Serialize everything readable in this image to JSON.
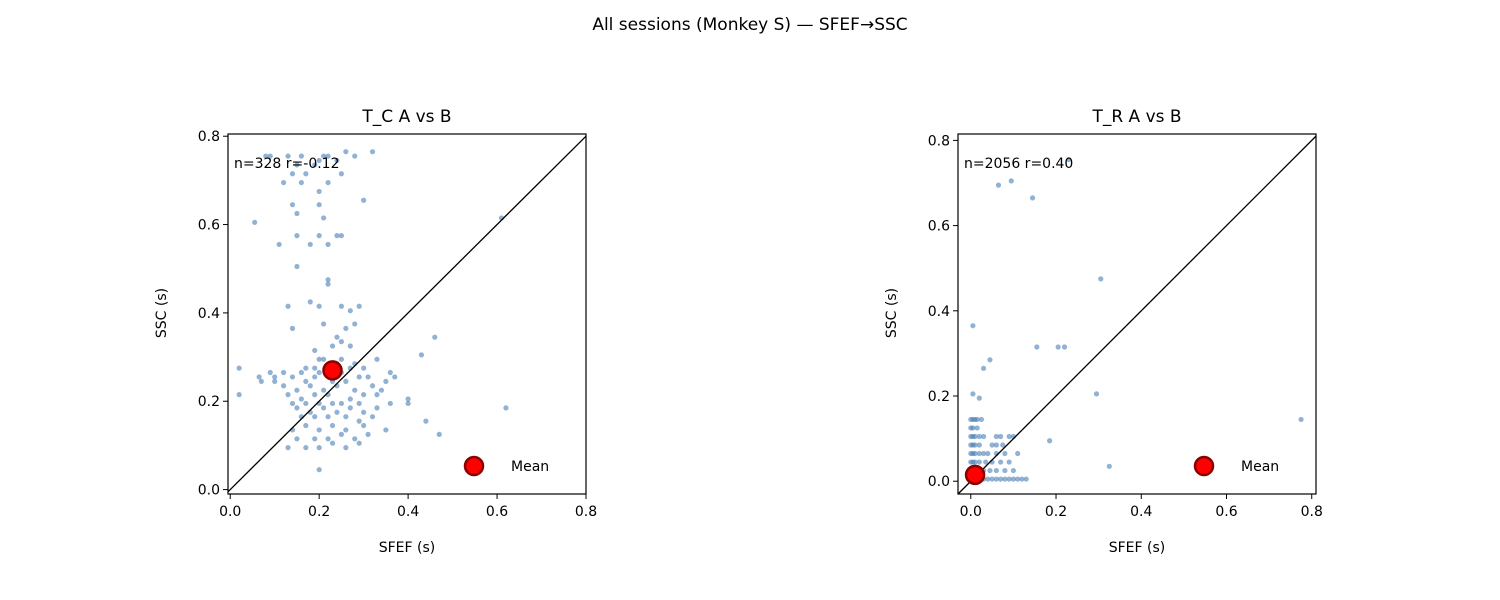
{
  "suptitle": "All sessions (Monkey S) — SFEF→SSC",
  "colors": {
    "points": "#4a7fb5",
    "mean_fill": "#ff0000",
    "mean_edge": "#8b0000",
    "diagonal": "#000000"
  },
  "chart_data": [
    {
      "type": "scatter",
      "title": "T_C  A vs B",
      "xlabel": "SFEF (s)",
      "ylabel": "SSC (s)",
      "xlim": [
        -0.005,
        0.8
      ],
      "ylim": [
        -0.01,
        0.805
      ],
      "xticks": [
        "0.0",
        "0.2",
        "0.4",
        "0.6",
        "0.8"
      ],
      "yticks": [
        "0.0",
        "0.2",
        "0.4",
        "0.6",
        "0.8"
      ],
      "stats_text": "n=328  r=-0.12",
      "legend": {
        "label": "Mean",
        "position": "lower-right"
      },
      "grid": false,
      "diagonal": true,
      "mean": {
        "x": 0.23,
        "y": 0.27
      },
      "points": [
        [
          0.08,
          0.755
        ],
        [
          0.09,
          0.755
        ],
        [
          0.13,
          0.755
        ],
        [
          0.16,
          0.755
        ],
        [
          0.21,
          0.755
        ],
        [
          0.22,
          0.755
        ],
        [
          0.26,
          0.765
        ],
        [
          0.28,
          0.755
        ],
        [
          0.32,
          0.765
        ],
        [
          0.15,
          0.735
        ],
        [
          0.19,
          0.735
        ],
        [
          0.2,
          0.745
        ],
        [
          0.24,
          0.745
        ],
        [
          0.14,
          0.715
        ],
        [
          0.17,
          0.715
        ],
        [
          0.12,
          0.695
        ],
        [
          0.16,
          0.695
        ],
        [
          0.2,
          0.675
        ],
        [
          0.22,
          0.695
        ],
        [
          0.25,
          0.715
        ],
        [
          0.14,
          0.645
        ],
        [
          0.15,
          0.625
        ],
        [
          0.2,
          0.645
        ],
        [
          0.3,
          0.655
        ],
        [
          0.21,
          0.615
        ],
        [
          0.055,
          0.605
        ],
        [
          0.11,
          0.555
        ],
        [
          0.15,
          0.575
        ],
        [
          0.18,
          0.555
        ],
        [
          0.2,
          0.575
        ],
        [
          0.22,
          0.555
        ],
        [
          0.24,
          0.575
        ],
        [
          0.25,
          0.575
        ],
        [
          0.15,
          0.505
        ],
        [
          0.22,
          0.475
        ],
        [
          0.22,
          0.465
        ],
        [
          0.13,
          0.415
        ],
        [
          0.18,
          0.425
        ],
        [
          0.2,
          0.415
        ],
        [
          0.25,
          0.415
        ],
        [
          0.27,
          0.405
        ],
        [
          0.29,
          0.415
        ],
        [
          0.14,
          0.365
        ],
        [
          0.21,
          0.375
        ],
        [
          0.26,
          0.365
        ],
        [
          0.28,
          0.375
        ],
        [
          0.24,
          0.345
        ],
        [
          0.25,
          0.335
        ],
        [
          0.27,
          0.325
        ],
        [
          0.46,
          0.345
        ],
        [
          0.19,
          0.315
        ],
        [
          0.23,
          0.325
        ],
        [
          0.43,
          0.305
        ],
        [
          0.2,
          0.295
        ],
        [
          0.21,
          0.295
        ],
        [
          0.25,
          0.295
        ],
        [
          0.28,
          0.285
        ],
        [
          0.33,
          0.295
        ],
        [
          0.17,
          0.275
        ],
        [
          0.19,
          0.275
        ],
        [
          0.22,
          0.275
        ],
        [
          0.24,
          0.285
        ],
        [
          0.27,
          0.275
        ],
        [
          0.3,
          0.275
        ],
        [
          0.02,
          0.275
        ],
        [
          0.09,
          0.265
        ],
        [
          0.1,
          0.255
        ],
        [
          0.12,
          0.265
        ],
        [
          0.16,
          0.265
        ],
        [
          0.2,
          0.265
        ],
        [
          0.25,
          0.265
        ],
        [
          0.29,
          0.255
        ],
        [
          0.36,
          0.265
        ],
        [
          0.37,
          0.255
        ],
        [
          0.065,
          0.255
        ],
        [
          0.07,
          0.245
        ],
        [
          0.1,
          0.245
        ],
        [
          0.14,
          0.255
        ],
        [
          0.17,
          0.245
        ],
        [
          0.19,
          0.255
        ],
        [
          0.23,
          0.245
        ],
        [
          0.26,
          0.245
        ],
        [
          0.31,
          0.255
        ],
        [
          0.35,
          0.245
        ],
        [
          0.12,
          0.235
        ],
        [
          0.15,
          0.225
        ],
        [
          0.18,
          0.235
        ],
        [
          0.21,
          0.225
        ],
        [
          0.24,
          0.235
        ],
        [
          0.28,
          0.225
        ],
        [
          0.32,
          0.235
        ],
        [
          0.34,
          0.225
        ],
        [
          0.02,
          0.215
        ],
        [
          0.13,
          0.215
        ],
        [
          0.16,
          0.205
        ],
        [
          0.19,
          0.215
        ],
        [
          0.22,
          0.215
        ],
        [
          0.27,
          0.205
        ],
        [
          0.3,
          0.215
        ],
        [
          0.33,
          0.215
        ],
        [
          0.14,
          0.195
        ],
        [
          0.17,
          0.195
        ],
        [
          0.2,
          0.195
        ],
        [
          0.23,
          0.195
        ],
        [
          0.25,
          0.195
        ],
        [
          0.29,
          0.195
        ],
        [
          0.36,
          0.195
        ],
        [
          0.4,
          0.205
        ],
        [
          0.4,
          0.195
        ],
        [
          0.15,
          0.185
        ],
        [
          0.18,
          0.175
        ],
        [
          0.21,
          0.185
        ],
        [
          0.24,
          0.175
        ],
        [
          0.27,
          0.185
        ],
        [
          0.3,
          0.175
        ],
        [
          0.33,
          0.185
        ],
        [
          0.62,
          0.185
        ],
        [
          0.16,
          0.165
        ],
        [
          0.19,
          0.165
        ],
        [
          0.22,
          0.165
        ],
        [
          0.26,
          0.165
        ],
        [
          0.29,
          0.155
        ],
        [
          0.32,
          0.165
        ],
        [
          0.44,
          0.155
        ],
        [
          0.14,
          0.135
        ],
        [
          0.17,
          0.145
        ],
        [
          0.2,
          0.135
        ],
        [
          0.23,
          0.145
        ],
        [
          0.26,
          0.135
        ],
        [
          0.3,
          0.145
        ],
        [
          0.35,
          0.135
        ],
        [
          0.47,
          0.125
        ],
        [
          0.15,
          0.115
        ],
        [
          0.19,
          0.115
        ],
        [
          0.22,
          0.115
        ],
        [
          0.25,
          0.125
        ],
        [
          0.28,
          0.115
        ],
        [
          0.31,
          0.125
        ],
        [
          0.13,
          0.095
        ],
        [
          0.17,
          0.095
        ],
        [
          0.2,
          0.095
        ],
        [
          0.23,
          0.105
        ],
        [
          0.26,
          0.095
        ],
        [
          0.29,
          0.105
        ],
        [
          0.2,
          0.045
        ],
        [
          0.61,
          0.615
        ]
      ]
    },
    {
      "type": "scatter",
      "title": "T_R  A vs B",
      "xlabel": "SFEF (s)",
      "ylabel": "SSC (s)",
      "xlim": [
        -0.03,
        0.81
      ],
      "ylim": [
        -0.03,
        0.815
      ],
      "xticks": [
        "0.0",
        "0.2",
        "0.4",
        "0.6",
        "0.8"
      ],
      "yticks": [
        "0.0",
        "0.2",
        "0.4",
        "0.6",
        "0.8"
      ],
      "stats_text": "n=2056  r=0.40",
      "legend": {
        "label": "Mean",
        "position": "lower-right"
      },
      "grid": false,
      "diagonal": true,
      "mean": {
        "x": 0.01,
        "y": 0.015
      },
      "points": [
        [
          0.23,
          0.755
        ],
        [
          0.065,
          0.695
        ],
        [
          0.095,
          0.705
        ],
        [
          0.145,
          0.665
        ],
        [
          0.305,
          0.475
        ],
        [
          0.005,
          0.365
        ],
        [
          0.045,
          0.285
        ],
        [
          0.03,
          0.265
        ],
        [
          0.155,
          0.315
        ],
        [
          0.205,
          0.315
        ],
        [
          0.22,
          0.315
        ],
        [
          0.005,
          0.205
        ],
        [
          0.02,
          0.195
        ],
        [
          0.295,
          0.205
        ],
        [
          0.0,
          0.145
        ],
        [
          0.005,
          0.145
        ],
        [
          0.01,
          0.145
        ],
        [
          0.015,
          0.145
        ],
        [
          0.025,
          0.145
        ],
        [
          0.0,
          0.125
        ],
        [
          0.005,
          0.125
        ],
        [
          0.015,
          0.125
        ],
        [
          0.0,
          0.105
        ],
        [
          0.005,
          0.105
        ],
        [
          0.01,
          0.105
        ],
        [
          0.02,
          0.105
        ],
        [
          0.03,
          0.105
        ],
        [
          0.06,
          0.105
        ],
        [
          0.07,
          0.105
        ],
        [
          0.09,
          0.105
        ],
        [
          0.1,
          0.105
        ],
        [
          0.0,
          0.085
        ],
        [
          0.005,
          0.085
        ],
        [
          0.01,
          0.085
        ],
        [
          0.02,
          0.085
        ],
        [
          0.05,
          0.085
        ],
        [
          0.06,
          0.085
        ],
        [
          0.075,
          0.085
        ],
        [
          0.185,
          0.095
        ],
        [
          0.0,
          0.065
        ],
        [
          0.005,
          0.065
        ],
        [
          0.01,
          0.065
        ],
        [
          0.02,
          0.065
        ],
        [
          0.03,
          0.065
        ],
        [
          0.04,
          0.065
        ],
        [
          0.06,
          0.065
        ],
        [
          0.08,
          0.065
        ],
        [
          0.11,
          0.065
        ],
        [
          0.0,
          0.045
        ],
        [
          0.005,
          0.045
        ],
        [
          0.01,
          0.045
        ],
        [
          0.02,
          0.045
        ],
        [
          0.035,
          0.045
        ],
        [
          0.05,
          0.045
        ],
        [
          0.07,
          0.045
        ],
        [
          0.09,
          0.045
        ],
        [
          0.0,
          0.025
        ],
        [
          0.01,
          0.025
        ],
        [
          0.02,
          0.025
        ],
        [
          0.03,
          0.025
        ],
        [
          0.045,
          0.025
        ],
        [
          0.06,
          0.025
        ],
        [
          0.08,
          0.025
        ],
        [
          0.1,
          0.025
        ],
        [
          0.0,
          0.005
        ],
        [
          0.01,
          0.005
        ],
        [
          0.02,
          0.005
        ],
        [
          0.03,
          0.005
        ],
        [
          0.04,
          0.005
        ],
        [
          0.05,
          0.005
        ],
        [
          0.06,
          0.005
        ],
        [
          0.07,
          0.005
        ],
        [
          0.08,
          0.005
        ],
        [
          0.09,
          0.005
        ],
        [
          0.1,
          0.005
        ],
        [
          0.11,
          0.005
        ],
        [
          0.12,
          0.005
        ],
        [
          0.13,
          0.005
        ],
        [
          0.325,
          0.035
        ],
        [
          0.775,
          0.145
        ]
      ]
    }
  ]
}
